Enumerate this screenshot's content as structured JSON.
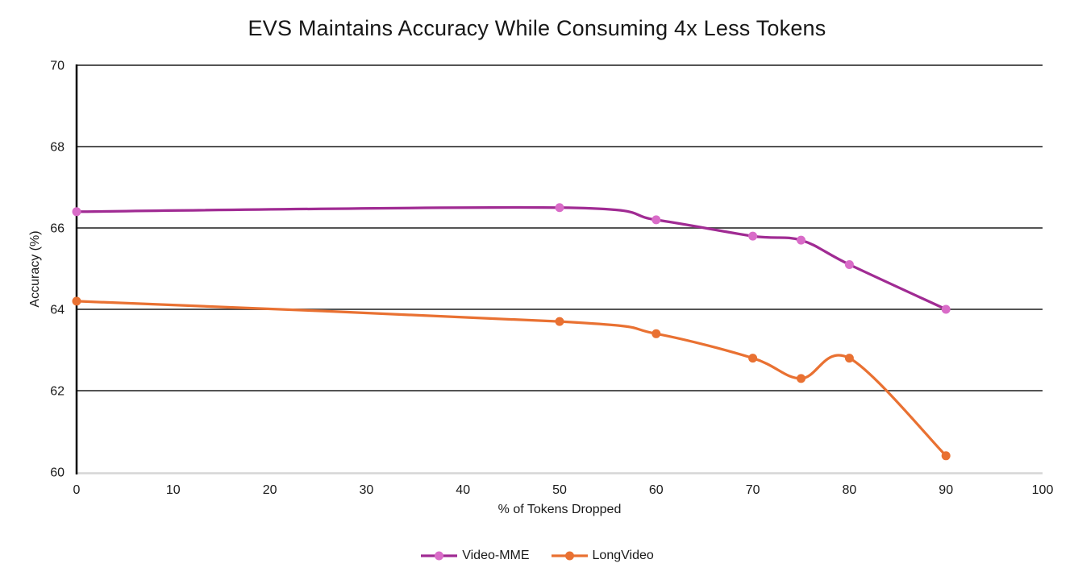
{
  "chart_data": {
    "type": "line",
    "title": "EVS Maintains Accuracy While Consuming 4x Less Tokens",
    "xlabel": "% of Tokens Dropped",
    "ylabel": "Accuracy (%)",
    "xlim": [
      0,
      100
    ],
    "ylim": [
      60,
      70
    ],
    "x_ticks": [
      0,
      10,
      20,
      30,
      40,
      50,
      60,
      70,
      80,
      90,
      100
    ],
    "y_ticks": [
      60,
      62,
      64,
      66,
      68,
      70
    ],
    "grid": "horizontal",
    "line_style": "smooth",
    "legend_position": "bottom-center",
    "series": [
      {
        "name": "Video-MME",
        "x": [
          0,
          50,
          60,
          70,
          75,
          80,
          90
        ],
        "y": [
          66.4,
          66.5,
          66.2,
          65.8,
          65.7,
          65.1,
          64.0
        ],
        "line_color": "#A02B93",
        "marker_color": "#D96CC8"
      },
      {
        "name": "LongVideo",
        "x": [
          0,
          50,
          60,
          70,
          75,
          80,
          90
        ],
        "y": [
          64.2,
          63.7,
          63.4,
          62.8,
          62.3,
          62.8,
          60.4
        ],
        "line_color": "#E97132",
        "marker_color": "#E97132"
      }
    ],
    "colors": {
      "gridline": "#545454",
      "y_axis_line": "#000000",
      "x_axis_line": "#D6D6D6",
      "tick_label_text": "#1a1a1a",
      "title_text": "#171717",
      "background": "#ffffff"
    }
  }
}
